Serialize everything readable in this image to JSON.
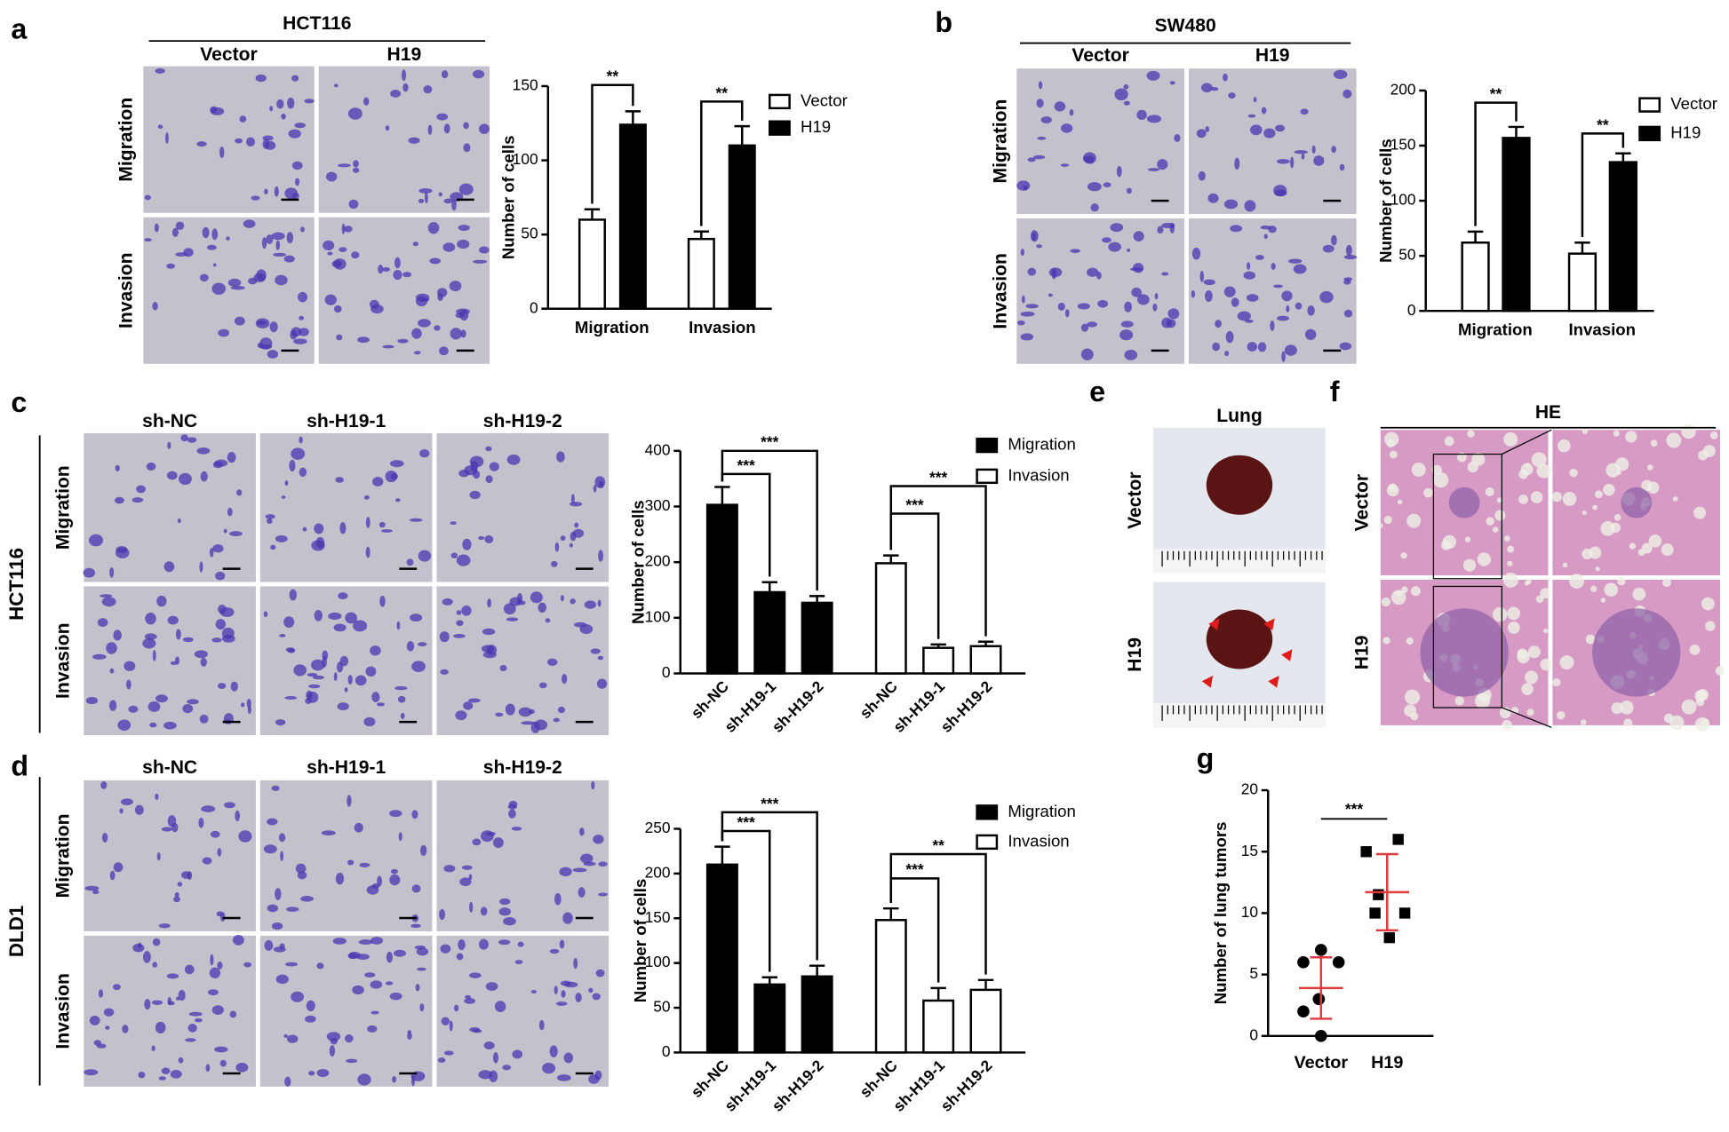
{
  "panels": [
    {
      "letter": "a",
      "header": "HCT116",
      "columns": [
        "Vector",
        "H19"
      ],
      "rows": [
        "Migration",
        "Invasion"
      ]
    },
    {
      "letter": "b",
      "header": "SW480",
      "columns": [
        "Vector",
        "H19"
      ],
      "rows": [
        "Migration",
        "Invasion"
      ]
    },
    {
      "letter": "c",
      "side": "HCT116",
      "columns": [
        "sh-NC",
        "sh-H19-1",
        "sh-H19-2"
      ],
      "rows": [
        "Migration",
        "Invasion"
      ]
    },
    {
      "letter": "d",
      "side": "DLD1",
      "columns": [
        "sh-NC",
        "sh-H19-1",
        "sh-H19-2"
      ],
      "rows": [
        "Migration",
        "Invasion"
      ]
    },
    {
      "letter": "e",
      "header": "Lung",
      "rows": [
        "Vector",
        "H19"
      ]
    },
    {
      "letter": "f",
      "header": "HE",
      "rows": [
        "Vector",
        "H19"
      ]
    },
    {
      "letter": "g"
    }
  ],
  "chart_data": [
    {
      "type": "bar",
      "ylabel": "Number of cells",
      "categories": [
        "Migration",
        "Invasion"
      ],
      "series": [
        {
          "name": "Vector",
          "color": "#ffffff",
          "values": [
            60,
            47
          ],
          "errors": [
            7,
            5
          ]
        },
        {
          "name": "H19",
          "color": "#000000",
          "values": [
            124,
            110
          ],
          "errors": [
            9,
            13
          ]
        }
      ],
      "ylim": [
        0,
        150
      ],
      "yticks": [
        0,
        50,
        100,
        150
      ],
      "annotations": [
        "**",
        "**"
      ]
    },
    {
      "type": "bar",
      "ylabel": "Number of cells",
      "categories": [
        "Migration",
        "Invasion"
      ],
      "series": [
        {
          "name": "Vector",
          "color": "#ffffff",
          "values": [
            62,
            52
          ],
          "errors": [
            10,
            10
          ]
        },
        {
          "name": "H19",
          "color": "#000000",
          "values": [
            157,
            135
          ],
          "errors": [
            10,
            8
          ]
        }
      ],
      "ylim": [
        0,
        200
      ],
      "yticks": [
        0,
        50,
        100,
        150,
        200
      ],
      "annotations": [
        "**",
        "**"
      ]
    },
    {
      "type": "bar",
      "ylabel": "Number of cells",
      "categories": [
        "sh-NC",
        "sh-H19-1",
        "sh-H19-2"
      ],
      "series": [
        {
          "name": "Migration",
          "color": "#000000",
          "values": [
            303,
            146,
            127
          ],
          "errors": [
            32,
            18,
            12
          ]
        },
        {
          "name": "Invasion",
          "color": "#ffffff",
          "values": [
            198,
            46,
            49
          ],
          "errors": [
            14,
            6,
            8
          ]
        }
      ],
      "ylim": [
        0,
        400
      ],
      "yticks": [
        0,
        100,
        200,
        300,
        400
      ],
      "annotations": [
        "***",
        "***",
        "***",
        "***"
      ]
    },
    {
      "type": "bar",
      "ylabel": "Number of cells",
      "categories": [
        "sh-NC",
        "sh-H19-1",
        "sh-H19-2"
      ],
      "series": [
        {
          "name": "Migration",
          "color": "#000000",
          "values": [
            210,
            76,
            85
          ],
          "errors": [
            20,
            8,
            12
          ]
        },
        {
          "name": "Invasion",
          "color": "#ffffff",
          "values": [
            148,
            58,
            70
          ],
          "errors": [
            13,
            14,
            11
          ]
        }
      ],
      "ylim": [
        0,
        250
      ],
      "yticks": [
        0,
        50,
        100,
        150,
        200,
        250
      ],
      "annotations": [
        "***",
        "***",
        "**",
        "***"
      ]
    },
    {
      "type": "dot",
      "ylabel": "Number of lung tumors",
      "categories": [
        "Vector",
        "H19"
      ],
      "values": [
        [
          7,
          6,
          6,
          3,
          2,
          0
        ],
        [
          16,
          15,
          11.5,
          10,
          10,
          8
        ]
      ],
      "means": [
        3.9,
        11.7
      ],
      "sds": [
        2.5,
        3.1
      ],
      "markers": [
        "circle",
        "square"
      ],
      "color": "#000000",
      "summary_color": "#e0393e",
      "ylim": [
        0,
        20
      ],
      "yticks": [
        0,
        5,
        10,
        15,
        20
      ],
      "annotations": [
        "***"
      ]
    }
  ]
}
